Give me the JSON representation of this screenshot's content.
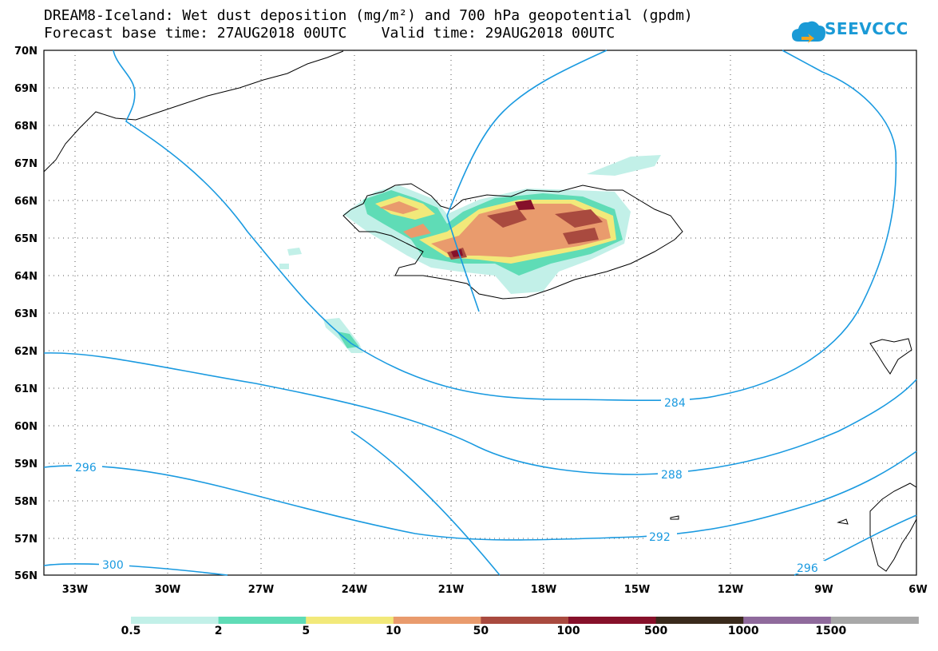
{
  "title": {
    "line1": "DREAM8-Iceland: Wet dust deposition (mg/m²) and 700 hPa geopotential (gpdm)",
    "line2": "Forecast base time: 27AUG2018 00UTC    Valid time: 29AUG2018 00UTC"
  },
  "logo": {
    "text": "SEEVCCC",
    "icon": "cloud-icon",
    "color": "#1a9ad6"
  },
  "map": {
    "lat_labels": [
      "70N",
      "69N",
      "68N",
      "67N",
      "66N",
      "65N",
      "64N",
      "63N",
      "62N",
      "61N",
      "60N",
      "59N",
      "58N",
      "57N",
      "56N"
    ],
    "lon_labels": [
      "33W",
      "30W",
      "27W",
      "24W",
      "21W",
      "18W",
      "15W",
      "12W",
      "9W",
      "6W"
    ],
    "grid": "dotted",
    "contour_color": "#1a9ae0",
    "contour_labels": [
      "284",
      "288",
      "292",
      "296",
      "296",
      "300"
    ]
  },
  "colorbar": {
    "labels": [
      "0.5",
      "2",
      "5",
      "10",
      "50",
      "100",
      "500",
      "1000",
      "1500"
    ],
    "colors": [
      "#c2f0e8",
      "#5fdcb6",
      "#f2e97a",
      "#e99b6d",
      "#a94a3f",
      "#86102a",
      "#3a2a1c",
      "#8f6a9c",
      "#a8a8a8"
    ]
  }
}
